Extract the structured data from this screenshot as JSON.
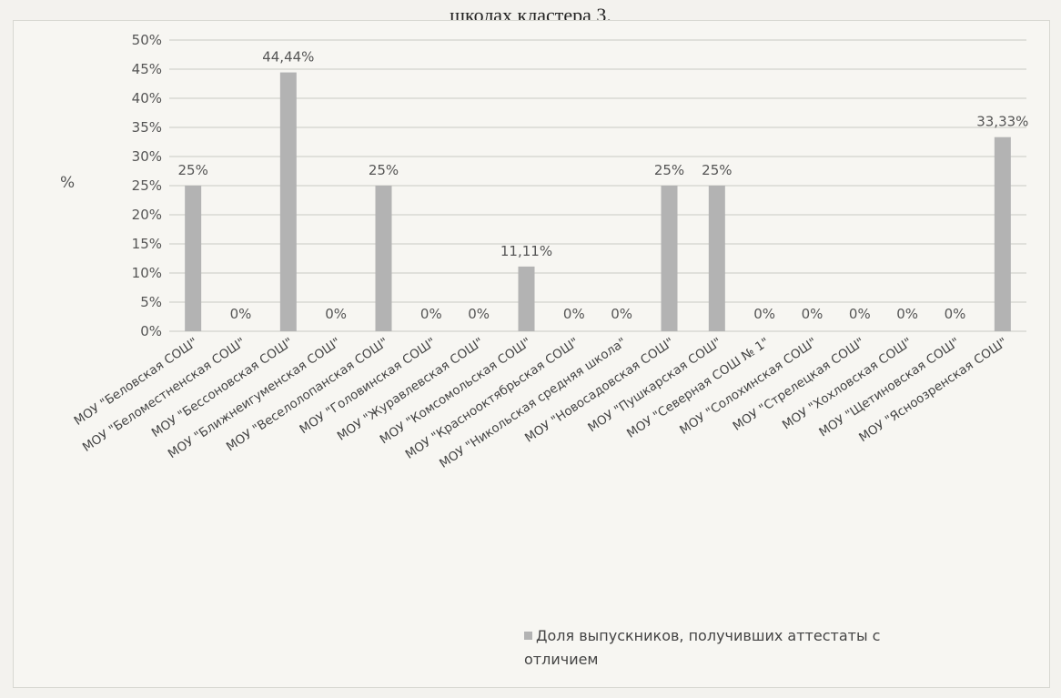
{
  "header": {
    "title_fragment": "школах кластера 3."
  },
  "chart_data": {
    "type": "bar",
    "title": "",
    "xlabel": "",
    "ylabel": "%",
    "ylim": [
      0,
      50
    ],
    "yticks": [
      "0%",
      "5%",
      "10%",
      "15%",
      "20%",
      "25%",
      "30%",
      "35%",
      "40%",
      "45%",
      "50%"
    ],
    "grid": true,
    "legend_position": "bottom-right",
    "bar_color": "#b3b3b3",
    "categories": [
      "МОУ \"Беловская СОШ\"",
      "МОУ \"Беломестненская СОШ\"",
      "МОУ \"Бессоновская СОШ\"",
      "МОУ \"Ближнеигуменская СОШ\"",
      "МОУ \"Веселолопанская СОШ\"",
      "МОУ \"Головинская СОШ\"",
      "МОУ \"Журавлевская СОШ\"",
      "МОУ \"Комсомольская СОШ\"",
      "МОУ \"Краснооктябрьская СОШ\"",
      "МОУ \"Никольская средняя школа\"",
      "МОУ \"Новосадовская СОШ\"",
      "МОУ \"Пушкарская СОШ\"",
      "МОУ \"Северная СОШ № 1\"",
      "МОУ \"Солохинская СОШ\"",
      "МОУ \"Стрелецкая СОШ\"",
      "МОУ \"Хохловская СОШ\"",
      "МОУ \"Щетиновская СОШ\"",
      "МОУ \"Ясноозренская СОШ\""
    ],
    "series": [
      {
        "name": "Доля выпускников, получивших аттестаты с отличием",
        "values": [
          25,
          0,
          44.44,
          0,
          25,
          0,
          0,
          11.11,
          0,
          0,
          25,
          25,
          0,
          0,
          0,
          0,
          0,
          33.33
        ],
        "labels": [
          "25%",
          "0%",
          "44,44%",
          "0%",
          "25%",
          "0%",
          "0%",
          "11,11%",
          "0%",
          "0%",
          "25%",
          "25%",
          "0%",
          "0%",
          "0%",
          "0%",
          "0%",
          "33,33%"
        ]
      }
    ]
  },
  "legend": {
    "line1": "Доля выпускников, получивших аттестаты с",
    "line2": "отличием"
  }
}
